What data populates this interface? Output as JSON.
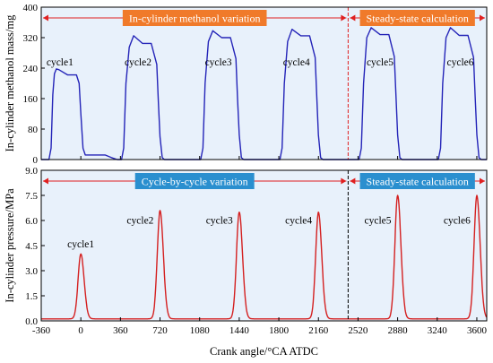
{
  "chart_data": [
    {
      "type": "line",
      "panel": "top",
      "title": "",
      "ylabel": "In-cylinder methanol mass/mg",
      "xlim": [
        -360,
        3690
      ],
      "ylim": [
        0,
        400
      ],
      "yticks": [
        0,
        80,
        160,
        240,
        320,
        400
      ],
      "grid": false,
      "background": "#e8f1fb",
      "line_color": "#2424b8",
      "divider": {
        "x": 2430,
        "color": "#e02020",
        "style": "dashed"
      },
      "regions": [
        {
          "label": "In-cylinder methanol variation",
          "x_start": -360,
          "x_end": 2430,
          "color": "#f07a2a"
        },
        {
          "label": "Steady-state calculation",
          "x_start": 2430,
          "x_end": 3690,
          "color": "#f07a2a"
        }
      ],
      "series": [
        {
          "x": [
            -360,
            -290,
            -270,
            -255,
            -240,
            -222,
            -200,
            -120,
            -40,
            -15,
            0,
            20,
            40,
            80,
            220,
            280,
            330,
            370,
            390,
            410,
            440,
            480,
            560,
            640,
            690,
            705,
            720,
            740,
            760,
            800,
            940,
            1000,
            1050,
            1090,
            1110,
            1130,
            1160,
            1200,
            1280,
            1360,
            1410,
            1425,
            1440,
            1460,
            1480,
            1520,
            1660,
            1720,
            1770,
            1810,
            1830,
            1850,
            1880,
            1920,
            2000,
            2080,
            2130,
            2145,
            2160,
            2180,
            2200,
            2240,
            2380,
            2430,
            2490,
            2530,
            2550,
            2570,
            2600,
            2640,
            2720,
            2800,
            2850,
            2865,
            2880,
            2900,
            2920,
            2960,
            3100,
            3160,
            3210,
            3250,
            3270,
            3290,
            3320,
            3360,
            3440,
            3520,
            3570,
            3585,
            3600,
            3620,
            3640,
            3690
          ],
          "values": [
            0,
            0,
            30,
            170,
            225,
            238,
            236,
            222,
            222,
            200,
            120,
            30,
            12,
            12,
            12,
            5,
            0,
            0,
            30,
            200,
            295,
            325,
            305,
            305,
            250,
            150,
            60,
            5,
            0,
            0,
            0,
            0,
            0,
            0,
            30,
            200,
            310,
            338,
            320,
            320,
            265,
            160,
            65,
            5,
            0,
            0,
            0,
            0,
            0,
            0,
            30,
            200,
            310,
            342,
            325,
            325,
            268,
            165,
            65,
            5,
            0,
            0,
            0,
            0,
            0,
            0,
            30,
            200,
            320,
            346,
            328,
            328,
            270,
            165,
            65,
            5,
            0,
            0,
            0,
            0,
            0,
            0,
            30,
            200,
            320,
            346,
            326,
            326,
            268,
            165,
            65,
            5,
            0,
            0
          ]
        }
      ],
      "annotations": [
        {
          "text": "cycle1",
          "x": -190,
          "y": 247
        },
        {
          "text": "cycle2",
          "x": 520,
          "y": 247
        },
        {
          "text": "cycle3",
          "x": 1250,
          "y": 247
        },
        {
          "text": "cycle4",
          "x": 1960,
          "y": 247
        },
        {
          "text": "cycle5",
          "x": 2720,
          "y": 247
        },
        {
          "text": "cycle6",
          "x": 3450,
          "y": 247
        }
      ]
    },
    {
      "type": "line",
      "panel": "bottom",
      "title": "",
      "xlabel": "Crank angle/°CA ATDC",
      "ylabel": "In-cylinder pressure/MPa",
      "xlim": [
        -360,
        3690
      ],
      "ylim": [
        0,
        9
      ],
      "yticks": [
        0.0,
        1.5,
        3.0,
        4.5,
        6.0,
        7.5,
        9.0
      ],
      "xticks": [
        -360,
        0,
        360,
        720,
        1080,
        1440,
        1800,
        2160,
        2520,
        2880,
        3240,
        3600
      ],
      "grid": false,
      "background": "#e8f1fb",
      "line_color": "#d42020",
      "divider": {
        "x": 2430,
        "color": "#000000",
        "style": "dashed"
      },
      "regions": [
        {
          "label": "Cycle-by-cycle variation",
          "x_start": -360,
          "x_end": 2430,
          "color": "#2a8fcf"
        },
        {
          "label": "Steady-state calculation",
          "x_start": 2430,
          "x_end": 3690,
          "color": "#2a8fcf"
        }
      ],
      "peaks": [
        {
          "x": 0,
          "peak": 4.0
        },
        {
          "x": 720,
          "peak": 6.6
        },
        {
          "x": 1440,
          "peak": 6.5
        },
        {
          "x": 2160,
          "peak": 6.5
        },
        {
          "x": 2880,
          "peak": 7.5
        },
        {
          "x": 3600,
          "peak": 7.5
        }
      ],
      "baseline": 0.12,
      "annotations": [
        {
          "text": "cycle1",
          "x": 0,
          "y": 4.4
        },
        {
          "text": "cycle2",
          "x": 540,
          "y": 5.8
        },
        {
          "text": "cycle3",
          "x": 1260,
          "y": 5.8
        },
        {
          "text": "cycle4",
          "x": 1980,
          "y": 5.8
        },
        {
          "text": "cycle5",
          "x": 2700,
          "y": 5.8
        },
        {
          "text": "cycle6",
          "x": 3420,
          "y": 5.8
        }
      ]
    }
  ]
}
